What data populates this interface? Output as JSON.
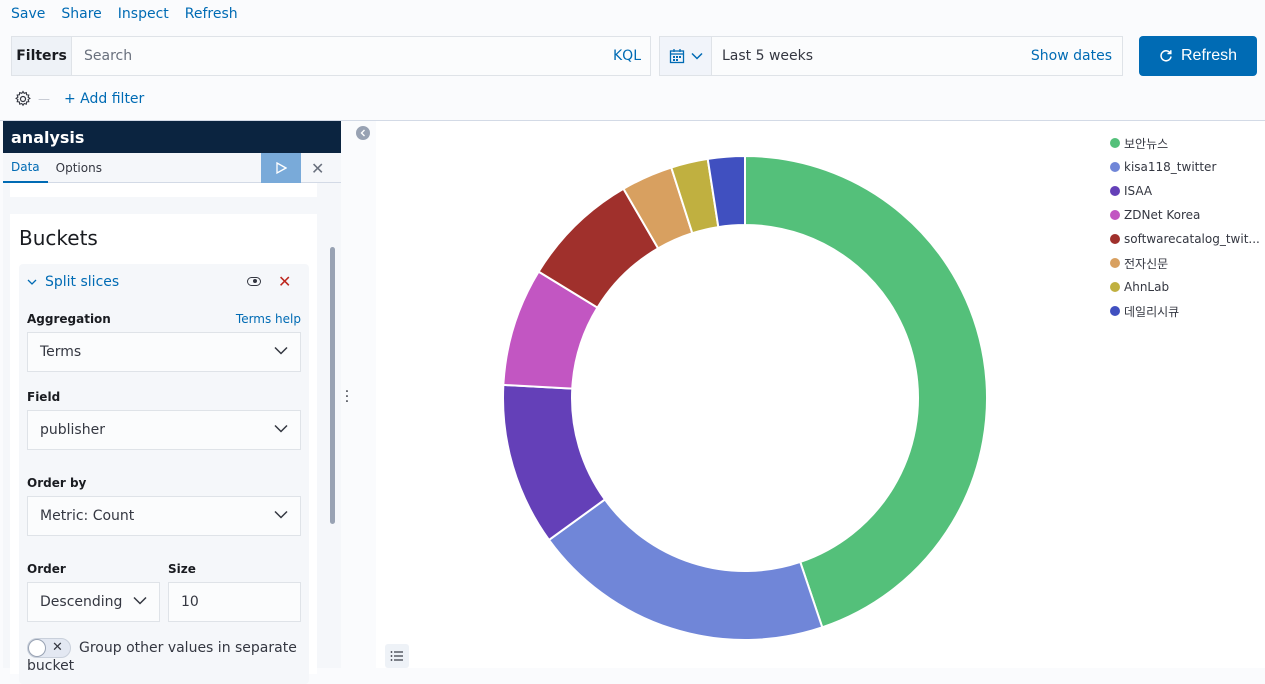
{
  "top_links": [
    "Save",
    "Share",
    "Inspect",
    "Refresh"
  ],
  "query": {
    "filters_label": "Filters",
    "search_placeholder": "Search",
    "language": "KQL"
  },
  "time": {
    "range": "Last 5 weeks",
    "show_dates": "Show dates",
    "refresh_label": "Refresh"
  },
  "filter_row": {
    "add_filter": "+ Add filter"
  },
  "sidebar": {
    "title": "analysis",
    "tabs": [
      "Data",
      "Options"
    ],
    "buckets_title": "Buckets",
    "split": {
      "title": "Split slices",
      "aggregation_label": "Aggregation",
      "help_link": "Terms help",
      "aggregation_value": "Terms",
      "field_label": "Field",
      "field_value": "publisher",
      "orderby_label": "Order by",
      "orderby_value": "Metric: Count",
      "order_label": "Order",
      "order_value": "Descending",
      "size_label": "Size",
      "size_value": "10",
      "group_label": "Group other values in separate",
      "group_label_cont": "bucket"
    }
  },
  "colors": {
    "accent": "#006bb4",
    "sidebar_title_bg": "#0b2440"
  },
  "chart_data": {
    "type": "pie",
    "donut": true,
    "legend": "right",
    "categories": [
      "보안뉴스",
      "kisa118_twitter",
      "ISAA",
      "ZDNet Korea",
      "softwarecatalog_twit...",
      "전자신문",
      "AhnLab",
      "데일리시큐"
    ],
    "values": [
      45.5,
      20.5,
      11.0,
      8.0,
      8.0,
      3.5,
      2.5,
      2.5
    ],
    "colors": [
      "#54b399",
      "#6092c0",
      "#d36086",
      "#9170b8",
      "#ca8eae",
      "#d6bf57",
      "#b9a888",
      "#da8b45"
    ],
    "legend_colors": [
      "#54c07a",
      "#7086d8",
      "#6440b8",
      "#c256c2",
      "#a0302c",
      "#d8a060",
      "#c0b040",
      "#4050c0"
    ]
  }
}
